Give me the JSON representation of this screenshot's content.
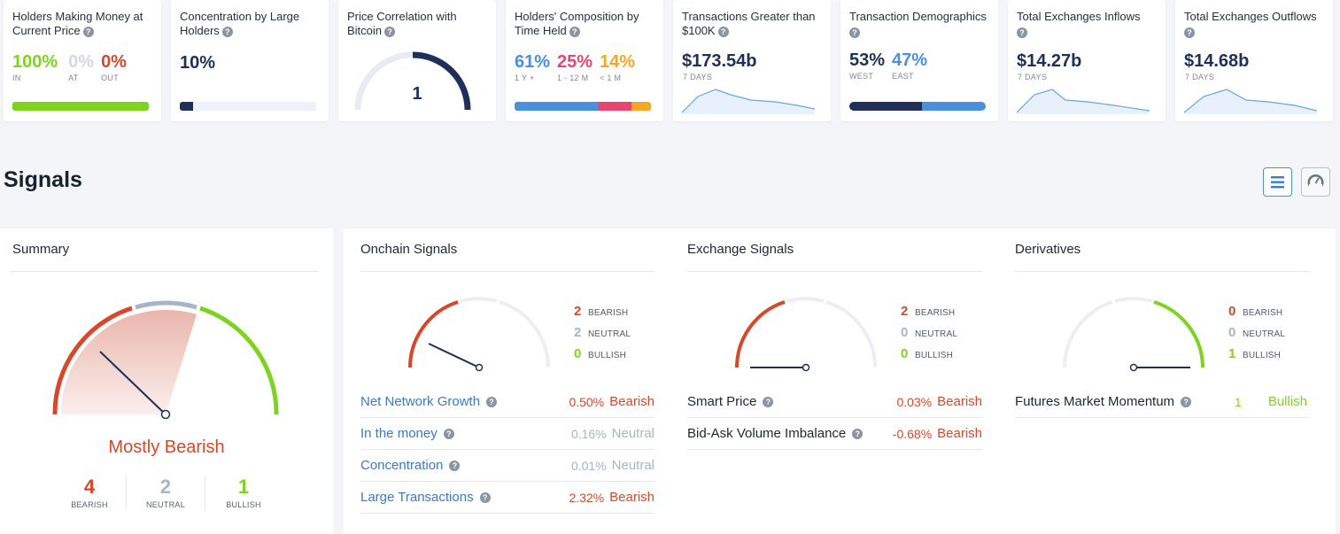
{
  "cards": {
    "holders_money": {
      "title": "Holders Making Money at Current Price",
      "items": [
        {
          "value": "100%",
          "label": "IN"
        },
        {
          "value": "0%",
          "label": "AT"
        },
        {
          "value": "0%",
          "label": "OUT"
        }
      ],
      "bar": {
        "in": 1.0,
        "at": 0.0,
        "out": 0.0
      }
    },
    "concentration": {
      "title": "Concentration by Large Holders",
      "value": "10%",
      "bar_fill": 0.1
    },
    "correlation": {
      "title": "Price Correlation with Bitcoin",
      "value": "1"
    },
    "composition": {
      "title": "Holders' Composition by Time Held",
      "items": [
        {
          "value": "61%",
          "label": "1 Y +"
        },
        {
          "value": "25%",
          "label": "1 - 12 M"
        },
        {
          "value": "14%",
          "label": "< 1 M"
        }
      ]
    },
    "large_tx": {
      "title": "Transactions Greater than $100K",
      "value": "$173.54b",
      "period": "7 DAYS"
    },
    "demographics": {
      "title": "Transaction Demographics",
      "items": [
        {
          "value": "53%",
          "label": "WEST"
        },
        {
          "value": "47%",
          "label": "EAST"
        }
      ]
    },
    "inflows": {
      "title": "Total Exchanges Inflows",
      "value": "$14.27b",
      "period": "7 DAYS"
    },
    "outflows": {
      "title": "Total Exchanges Outflows",
      "value": "$14.68b",
      "period": "7 DAYS"
    }
  },
  "signals": {
    "heading": "Signals",
    "summary": {
      "title": "Summary",
      "verdict": "Mostly Bearish",
      "counts": [
        {
          "n": "4",
          "label": "BEARISH"
        },
        {
          "n": "2",
          "label": "NEUTRAL"
        },
        {
          "n": "1",
          "label": "BULLISH"
        }
      ]
    },
    "onchain": {
      "title": "Onchain Signals",
      "legend": [
        {
          "n": "2",
          "label": "BEARISH"
        },
        {
          "n": "2",
          "label": "NEUTRAL"
        },
        {
          "n": "0",
          "label": "BULLISH"
        }
      ],
      "rows": [
        {
          "name": "Net Network Growth",
          "value": "0.50%",
          "signal": "Bearish"
        },
        {
          "name": "In the money",
          "value": "0.16%",
          "signal": "Neutral"
        },
        {
          "name": "Concentration",
          "value": "0.01%",
          "signal": "Neutral"
        },
        {
          "name": "Large Transactions",
          "value": "2.32%",
          "signal": "Bearish"
        }
      ]
    },
    "exchange": {
      "title": "Exchange Signals",
      "legend": [
        {
          "n": "2",
          "label": "BEARISH"
        },
        {
          "n": "0",
          "label": "NEUTRAL"
        },
        {
          "n": "0",
          "label": "BULLISH"
        }
      ],
      "rows": [
        {
          "name": "Smart Price",
          "value": "0.03%",
          "signal": "Bearish"
        },
        {
          "name": "Bid-Ask Volume Imbalance",
          "value": "-0.68%",
          "signal": "Bearish"
        }
      ]
    },
    "derivatives": {
      "title": "Derivatives",
      "legend": [
        {
          "n": "0",
          "label": "BEARISH"
        },
        {
          "n": "0",
          "label": "NEUTRAL"
        },
        {
          "n": "1",
          "label": "BULLISH"
        }
      ],
      "rows": [
        {
          "name": "Futures Market Momentum",
          "value": "1",
          "signal": "Bullish"
        }
      ]
    }
  },
  "colors": {
    "bearish": "#d9472b",
    "neutral": "#a9b3c9",
    "bullish": "#7ed321",
    "navy": "#1f2f5a",
    "blue": "#4a8fe0",
    "pink": "#e9456e",
    "orange": "#f5a623"
  },
  "icons": {
    "list_view": "list-icon",
    "gauge_view": "gauge-icon",
    "help": "question-icon"
  }
}
